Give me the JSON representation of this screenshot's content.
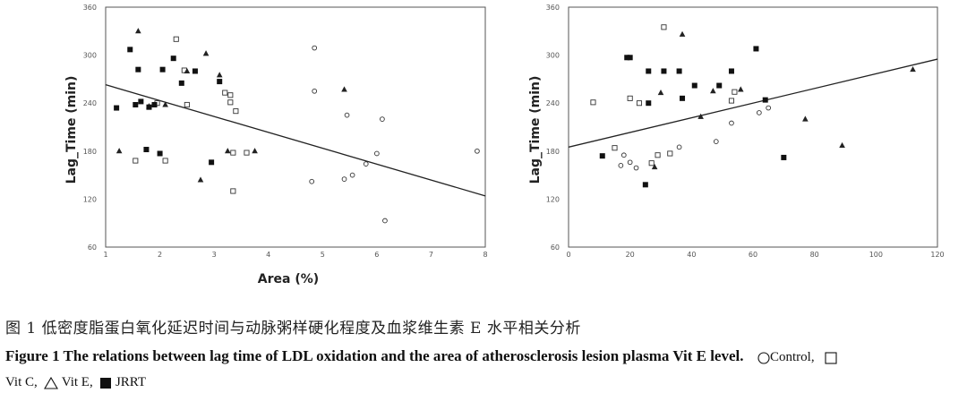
{
  "chart_data": [
    {
      "type": "scatter",
      "ylabel": "Lag_Time (min)",
      "xlabel": "Area (%)",
      "yticks": [
        "360",
        "300",
        "240",
        "180",
        "120",
        "60"
      ],
      "ylim": [
        60,
        360
      ],
      "xticks": [
        "1",
        "2",
        "3",
        "4",
        "5",
        "6",
        "7",
        "8"
      ],
      "xlim": [
        1,
        8
      ],
      "grid": false,
      "trendline": {
        "x": [
          1,
          8
        ],
        "y": [
          263,
          124
        ]
      },
      "series": [
        {
          "name": "Control",
          "marker": "circle-open",
          "x": [
            4.85,
            4.85,
            5.45,
            6.1,
            6.0,
            5.8,
            5.55,
            5.4,
            4.8,
            6.15,
            7.85
          ],
          "y": [
            309,
            255,
            225,
            220,
            177,
            164,
            150,
            145,
            142,
            93,
            180
          ]
        },
        {
          "name": "Vit C",
          "marker": "square-open",
          "x": [
            2.3,
            2.45,
            2.5,
            1.95,
            2.1,
            3.2,
            3.3,
            3.3,
            3.4,
            3.35,
            3.6,
            1.55,
            3.35
          ],
          "y": [
            320,
            281,
            238,
            240,
            168,
            253,
            250,
            241,
            230,
            178,
            178,
            168,
            130
          ]
        },
        {
          "name": "Vit E",
          "marker": "triangle-open",
          "x": [
            1.6,
            2.85,
            2.5,
            2.1,
            1.8,
            3.1,
            1.25,
            3.25,
            3.75,
            5.4,
            2.75
          ],
          "y": [
            330,
            302,
            280,
            238,
            236,
            275,
            180,
            180,
            180,
            257,
            144
          ]
        },
        {
          "name": "JRRT",
          "marker": "square-filled",
          "x": [
            1.45,
            1.6,
            2.05,
            2.25,
            2.65,
            3.1,
            2.4,
            1.65,
            1.9,
            1.8,
            1.75,
            1.55,
            1.2,
            2.95,
            2.0
          ],
          "y": [
            307,
            282,
            282,
            296,
            280,
            267,
            265,
            242,
            238,
            235,
            182,
            238,
            234,
            166,
            177
          ]
        }
      ]
    },
    {
      "type": "scatter",
      "ylabel": "Lag_Time (min)",
      "xlabel": "",
      "yticks": [
        "360",
        "300",
        "240",
        "180",
        "120",
        "60"
      ],
      "ylim": [
        60,
        360
      ],
      "xticks": [
        "0",
        "20",
        "40",
        "60",
        "80",
        "100",
        "120"
      ],
      "xlim": [
        0,
        120
      ],
      "grid": false,
      "trendline": {
        "x": [
          0,
          120
        ],
        "y": [
          185,
          295
        ]
      },
      "series": [
        {
          "name": "Control",
          "marker": "circle-open",
          "x": [
            18,
            20,
            17,
            22,
            36,
            48,
            53,
            62,
            65
          ],
          "y": [
            175,
            166,
            162,
            159,
            185,
            192,
            215,
            228,
            234
          ]
        },
        {
          "name": "Vit C",
          "marker": "square-open",
          "x": [
            8,
            15,
            20,
            23,
            29,
            31,
            27,
            33,
            54,
            53
          ],
          "y": [
            241,
            184,
            246,
            240,
            175,
            335,
            165,
            177,
            254,
            243
          ]
        },
        {
          "name": "Vit E",
          "marker": "triangle-open",
          "x": [
            37,
            43,
            47,
            56,
            77,
            89,
            112,
            30,
            28
          ],
          "y": [
            326,
            223,
            255,
            257,
            220,
            187,
            282,
            253,
            160
          ]
        },
        {
          "name": "JRRT",
          "marker": "square-filled",
          "x": [
            11,
            20,
            19,
            26,
            31,
            36,
            37,
            41,
            49,
            53,
            61,
            64,
            26,
            25,
            70
          ],
          "y": [
            174,
            297,
            297,
            280,
            280,
            280,
            246,
            262,
            262,
            280,
            308,
            244,
            240,
            138,
            172
          ]
        }
      ]
    }
  ],
  "captions": {
    "chinese": "图 1   低密度脂蛋白氧化延迟时间与动脉粥样硬化程度及血浆维生素 E 水平相关分析",
    "english": "Figure 1    The relations between lag time of LDL oxidation and the area of atherosclerosis lesion   plasma Vit E level.",
    "legend_control": "Control,",
    "legend_vitc": "Vit C,",
    "legend_vite": "Vit E,",
    "legend_jrrt": "JRRT"
  }
}
